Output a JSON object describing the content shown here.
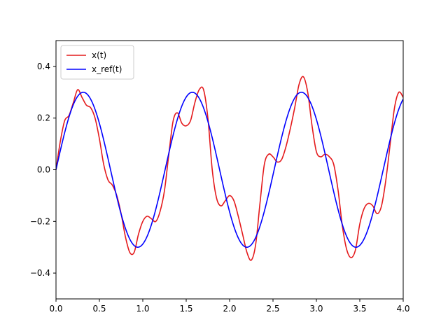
{
  "chart_data": {
    "type": "line",
    "title": "",
    "xlabel": "",
    "ylabel": "",
    "xlim": [
      0.0,
      4.0
    ],
    "ylim": [
      -0.5,
      0.5
    ],
    "grid": false,
    "legend_position": "top-left",
    "x_ticks": [
      "0.0",
      "0.5",
      "1.0",
      "1.5",
      "2.0",
      "2.5",
      "3.0",
      "3.5",
      "4.0"
    ],
    "y_ticks": [
      "−0.4",
      "−0.2",
      "0.0",
      "0.2",
      "0.4"
    ],
    "series": [
      {
        "name": "x(t)",
        "color": "#e41a1c",
        "x": [
          0.0,
          0.05,
          0.1,
          0.15,
          0.2,
          0.25,
          0.3,
          0.35,
          0.4,
          0.45,
          0.5,
          0.55,
          0.6,
          0.65,
          0.7,
          0.75,
          0.8,
          0.85,
          0.9,
          0.95,
          1.0,
          1.05,
          1.1,
          1.15,
          1.2,
          1.25,
          1.3,
          1.35,
          1.4,
          1.45,
          1.5,
          1.55,
          1.6,
          1.65,
          1.7,
          1.75,
          1.8,
          1.85,
          1.9,
          1.95,
          2.0,
          2.05,
          2.1,
          2.15,
          2.2,
          2.25,
          2.3,
          2.35,
          2.4,
          2.45,
          2.5,
          2.55,
          2.6,
          2.65,
          2.7,
          2.75,
          2.8,
          2.85,
          2.9,
          2.95,
          3.0,
          3.05,
          3.1,
          3.15,
          3.2,
          3.25,
          3.3,
          3.35,
          3.4,
          3.45,
          3.5,
          3.55,
          3.6,
          3.65,
          3.7,
          3.75,
          3.8,
          3.85,
          3.9,
          3.95,
          4.0
        ],
        "y": [
          0.0,
          0.11,
          0.19,
          0.21,
          0.26,
          0.31,
          0.28,
          0.25,
          0.24,
          0.2,
          0.12,
          0.02,
          -0.04,
          -0.06,
          -0.1,
          -0.17,
          -0.26,
          -0.32,
          -0.32,
          -0.25,
          -0.2,
          -0.18,
          -0.19,
          -0.2,
          -0.16,
          -0.08,
          0.06,
          0.19,
          0.22,
          0.18,
          0.17,
          0.19,
          0.26,
          0.31,
          0.31,
          0.2,
          0.0,
          -0.11,
          -0.14,
          -0.12,
          -0.1,
          -0.12,
          -0.18,
          -0.25,
          -0.32,
          -0.35,
          -0.29,
          -0.13,
          0.02,
          0.06,
          0.05,
          0.03,
          0.04,
          0.09,
          0.16,
          0.24,
          0.33,
          0.36,
          0.3,
          0.17,
          0.07,
          0.05,
          0.06,
          0.05,
          0.02,
          -0.08,
          -0.22,
          -0.31,
          -0.34,
          -0.31,
          -0.21,
          -0.15,
          -0.13,
          -0.14,
          -0.17,
          -0.14,
          -0.04,
          0.1,
          0.24,
          0.3,
          0.28
        ]
      },
      {
        "name": "x_ref(t)",
        "color": "#0000ff",
        "function": "0.3*sin(5*t)"
      }
    ]
  }
}
